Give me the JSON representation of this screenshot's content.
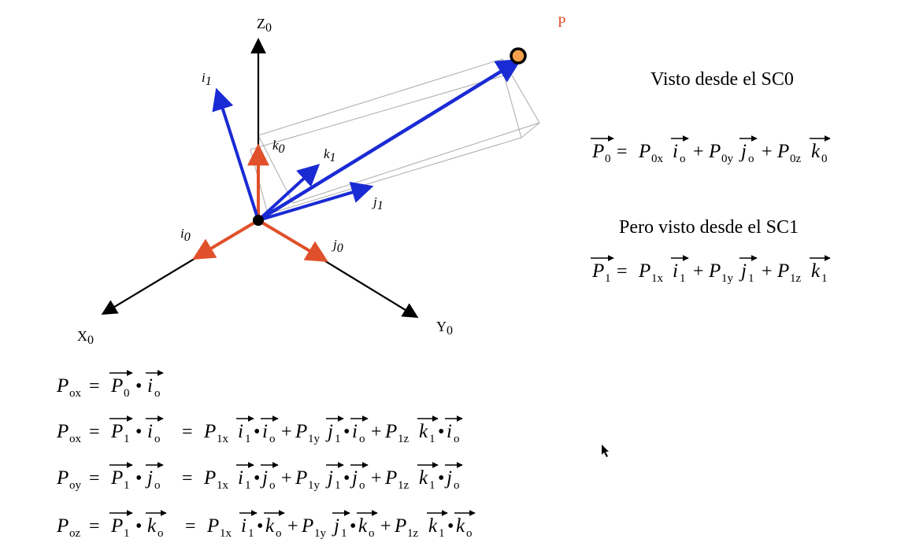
{
  "diagram": {
    "point_label": "P",
    "axes": {
      "z": "Z",
      "z_sub": "0",
      "x": "X",
      "x_sub": "0",
      "y": "Y",
      "y_sub": "0"
    },
    "frame0": {
      "i": "i",
      "i_sub": "0",
      "j": "j",
      "j_sub": "0",
      "k": "k",
      "k_sub": "0"
    },
    "frame1": {
      "i": "i",
      "i_sub": "1",
      "j": "j",
      "j_sub": "1",
      "k": "k",
      "k_sub": "1"
    },
    "colors": {
      "frame0": "#e0502a",
      "frame1": "#1a2bd4",
      "point_fill": "#f5a04a",
      "axes": "#000000",
      "box": "#aaaaaa"
    }
  },
  "headings": {
    "sc0": "Visto desde el SC0",
    "sc1": "Pero visto desde el SC1"
  },
  "symbols": {
    "P": "P",
    "i": "i",
    "j": "j",
    "k": "k",
    "eq": "=",
    "plus": "+",
    "dot": "•",
    "s0": "0",
    "s1": "1",
    "so": "o",
    "s0x": "0x",
    "s0y": "0y",
    "s0z": "0z",
    "s1x": "1x",
    "s1y": "1y",
    "s1z": "1z",
    "sox": "ox",
    "soy": "oy",
    "soz": "oz"
  }
}
